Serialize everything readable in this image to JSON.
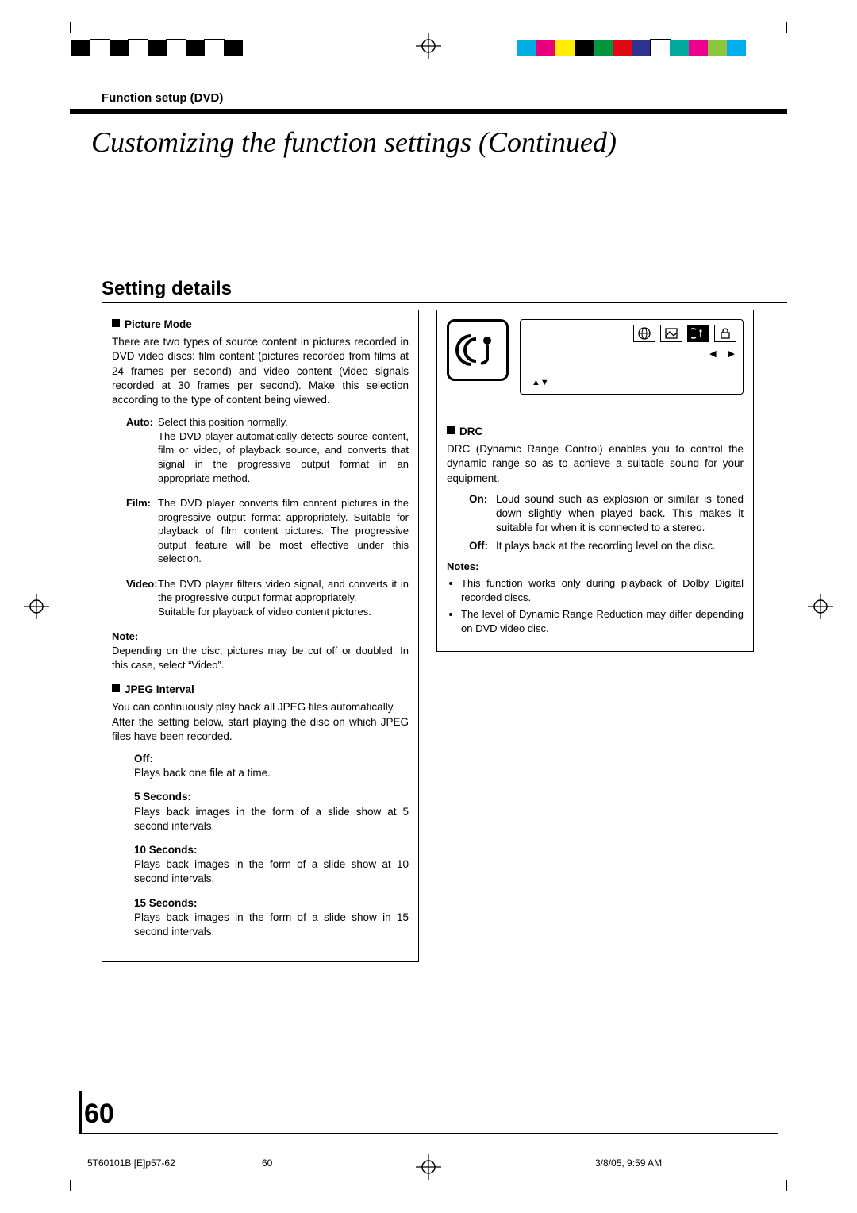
{
  "colorbar": {
    "left": [
      "#000000",
      "#ffffff",
      "#000000",
      "#ffffff",
      "#000000",
      "#ffffff",
      "#000000",
      "#ffffff",
      "#000000"
    ],
    "right": [
      "#00aee6",
      "#e6007e",
      "#ffed00",
      "#000000",
      "#009640",
      "#e30613",
      "#2e3192",
      "#ffffff",
      "#00a99d",
      "#ec008c",
      "#8cc63f",
      "#00aeef"
    ]
  },
  "header": {
    "runhead": "Function setup (DVD)",
    "title": "Customizing the function settings (Continued)"
  },
  "section": {
    "label": "Setting details"
  },
  "picture_mode": {
    "heading": "Picture Mode",
    "intro": "There are two types of source content in pictures recorded in DVD video discs: film content (pictures recorded from films at 24 frames per second) and video content (video signals recorded at 30 frames per second). Make this selection according to the type of content being viewed.",
    "items": [
      {
        "k": "Auto:",
        "v": "Select this position normally.\nThe DVD player automatically detects source content, film or video, of playback source, and converts that signal in the progressive output format in an appropriate method."
      },
      {
        "k": "Film:",
        "v": "The DVD player converts film content pictures in the progressive output format appropriately. Suitable for playback of film content pictures. The progressive output feature will be most effective under this selection."
      },
      {
        "k": "Video:",
        "v": "The DVD player filters video signal, and converts it in the progressive output format appropriately.\nSuitable for playback of video content pictures."
      }
    ],
    "note_label": "Note:",
    "note_text": "Depending on the disc, pictures may be cut off or doubled. In this case, select “Video”."
  },
  "jpeg": {
    "heading": "JPEG Interval",
    "intro1": "You can continuously play back all JPEG files automatically.",
    "intro2": "After the setting below, start playing the disc on which JPEG files have been recorded.",
    "options": [
      {
        "k": "Off:",
        "v": "Plays back one file at a time."
      },
      {
        "k": "5 Seconds:",
        "v": "Plays back images in the form of a slide show at 5 second intervals."
      },
      {
        "k": "10 Seconds:",
        "v": "Plays back images in the form of a slide show at 10 second intervals."
      },
      {
        "k": "15 Seconds:",
        "v": "Plays back images in the form of a slide show in 15 second intervals."
      }
    ]
  },
  "drc": {
    "heading": "DRC",
    "intro": "DRC (Dynamic Range Control) enables you to control the dynamic range so as to achieve a suitable sound for your equipment.",
    "options": [
      {
        "k": "On:",
        "v": "Loud sound such as explosion or similar is toned down slightly when played back. This makes it suitable for when it is connected to a stereo."
      },
      {
        "k": "Off:",
        "v": "It plays back at the recording level on the disc."
      }
    ],
    "notes_label": "Notes:",
    "notes": [
      "This function works only during playback of Dolby Digital recorded discs.",
      "The level of Dynamic Range Reduction may differ depending on DVD video disc."
    ]
  },
  "menu_arrows": {
    "h": "◀ ▶",
    "v": "▲▼"
  },
  "footer": {
    "page": "60",
    "slug_left": "5T60101B [E]p57-62",
    "slug_mid": "60",
    "slug_right": "3/8/05, 9:59 AM"
  }
}
